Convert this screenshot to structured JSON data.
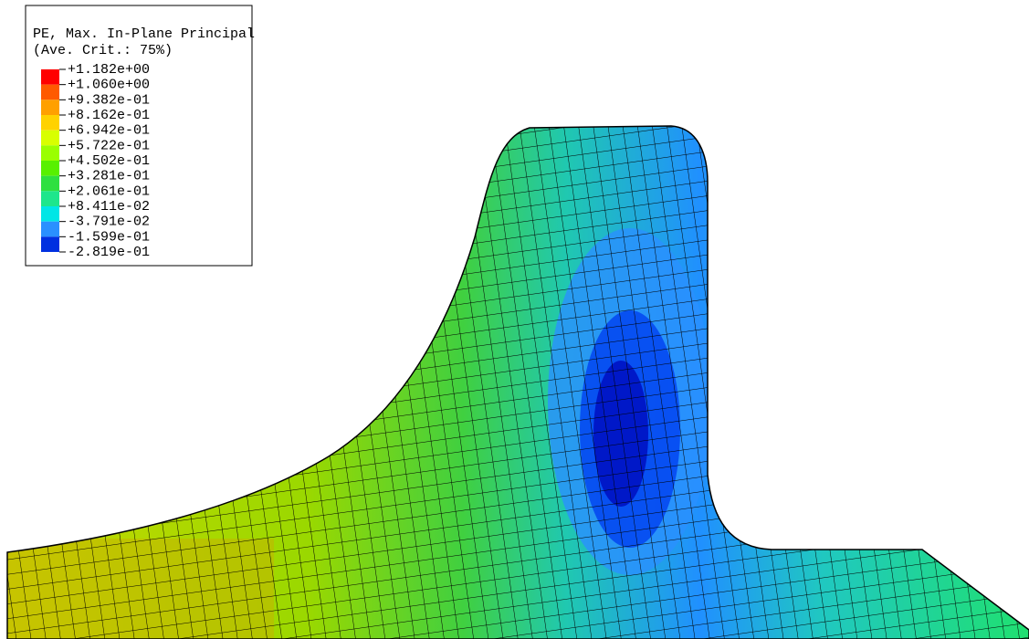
{
  "legend": {
    "title": "PE, Max. In-Plane Principal",
    "subtitle": "(Ave. Crit.: 75%)",
    "labels": [
      "+1.182e+00",
      "+1.060e+00",
      "+9.382e-01",
      "+8.162e-01",
      "+6.942e-01",
      "+5.722e-01",
      "+4.502e-01",
      "+3.281e-01",
      "+2.061e-01",
      "+8.411e-02",
      "-3.791e-02",
      "-1.599e-01",
      "-2.819e-01"
    ],
    "colors": [
      "#ff0000",
      "#ff5a00",
      "#ffa000",
      "#ffd200",
      "#d8ff00",
      "#9aff00",
      "#58f000",
      "#2ee040",
      "#1ee68c",
      "#00e6e6",
      "#2a90ff",
      "#0030e0"
    ]
  }
}
